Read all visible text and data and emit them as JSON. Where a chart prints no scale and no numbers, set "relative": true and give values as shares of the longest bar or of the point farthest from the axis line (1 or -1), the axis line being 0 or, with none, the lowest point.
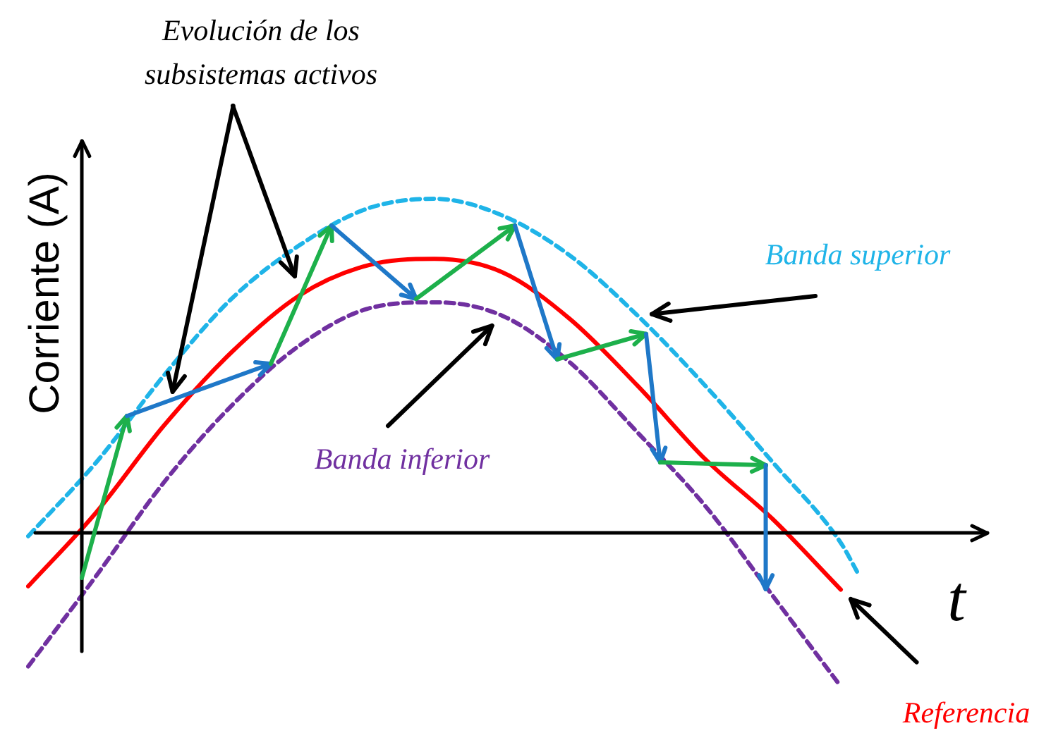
{
  "chart_data": {
    "type": "line",
    "relative": true,
    "marker": "none",
    "xlabel": "t",
    "ylabel": "Corriente (A)",
    "annotations": [
      "Evolución de los subsistemas activos"
    ],
    "categories": [
      null,
      null,
      null,
      null,
      null,
      null,
      null,
      null,
      null,
      null,
      null,
      null,
      null,
      null,
      null,
      null,
      null,
      null,
      null,
      null,
      null,
      null,
      null,
      null,
      null,
      null,
      null,
      null,
      null,
      null,
      null,
      null,
      null,
      null,
      null,
      null,
      null,
      null,
      null,
      null,
      null,
      null,
      null,
      null,
      null,
      null,
      null,
      null,
      null,
      null,
      null
    ],
    "series": [
      {
        "name": "Referencia",
        "color": "#ff0000",
        "line_style": "solid",
        "values": [
          -0.16,
          null,
          null,
          null,
          0.06,
          null,
          null,
          null,
          0.32,
          null,
          null,
          null,
          0.54,
          null,
          null,
          null,
          0.71,
          null,
          null,
          null,
          0.8,
          null,
          null,
          null,
          0.82,
          null,
          null,
          null,
          0.78,
          null,
          null,
          null,
          0.64,
          null,
          null,
          null,
          0.44,
          null,
          null,
          null,
          0.22,
          null,
          null,
          null,
          0.04,
          null,
          null,
          null,
          -0.17,
          null,
          null
        ]
      },
      {
        "name": "Banda superior",
        "color": "#1fb4e8",
        "line_style": "dashed",
        "values": [
          -0.01,
          null,
          null,
          null,
          0.21,
          null,
          null,
          null,
          0.47,
          null,
          null,
          null,
          0.7,
          null,
          null,
          null,
          0.86,
          null,
          null,
          null,
          0.97,
          null,
          null,
          null,
          1,
          null,
          null,
          null,
          0.95,
          null,
          null,
          null,
          0.83,
          null,
          null,
          null,
          0.65,
          null,
          null,
          null,
          0.44,
          null,
          null,
          null,
          0.21,
          null,
          null,
          null,
          -0.03,
          -0.12,
          null
        ]
      },
      {
        "name": "Banda inferior",
        "color": "#7030a0",
        "line_style": "dashed",
        "values": [
          -0.4,
          null,
          null,
          null,
          -0.13,
          null,
          null,
          null,
          0.15,
          null,
          null,
          null,
          0.38,
          null,
          null,
          null,
          0.56,
          null,
          null,
          null,
          0.67,
          null,
          null,
          null,
          0.69,
          null,
          null,
          null,
          0.65,
          null,
          null,
          null,
          0.51,
          null,
          null,
          null,
          0.3,
          null,
          null,
          null,
          0.08,
          null,
          null,
          null,
          -0.19,
          null,
          null,
          null,
          -0.46,
          null,
          null
        ]
      }
    ]
  }
}
